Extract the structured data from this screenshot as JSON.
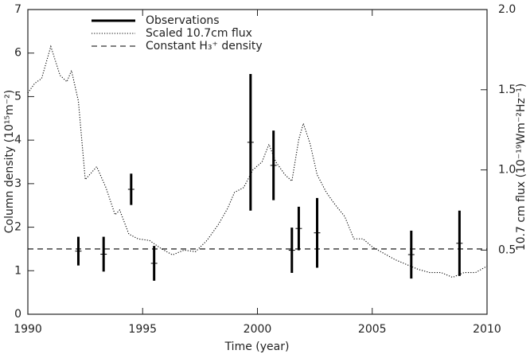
{
  "chart_data": {
    "type": "line",
    "xlabel": "Time (year)",
    "ylabel": "Column density (10¹⁵m⁻²)",
    "y2label": "10.7 cm flux (10⁻¹⁹Wm⁻²Hz⁻¹)",
    "xlim": [
      1990,
      2010
    ],
    "xticks": [
      1990,
      1995,
      2000,
      2005,
      2010
    ],
    "ylim": [
      0,
      7
    ],
    "yticks": [
      0,
      1,
      2,
      3,
      4,
      5,
      6,
      7
    ],
    "y2lim": [
      0.1,
      2.0
    ],
    "y2ticks": [
      {
        "value": 0.5,
        "label": "0.5"
      },
      {
        "value": 1.0,
        "label": "1.0"
      },
      {
        "value": 1.5,
        "label": "1.5"
      },
      {
        "value": 2.0,
        "label": "2.0"
      }
    ],
    "legend": "upper left",
    "series": [
      {
        "name": "Observations",
        "color": "#000000",
        "style": "errorbar",
        "x": [
          1992.2,
          1993.3,
          1994.5,
          1995.5,
          1999.7,
          2000.7,
          2001.5,
          2001.8,
          2002.6,
          2006.7,
          2008.8
        ],
        "values": [
          1.45,
          1.38,
          2.87,
          1.17,
          3.95,
          3.42,
          1.47,
          1.97,
          1.87,
          1.37,
          1.63
        ],
        "errors": [
          0.33,
          0.4,
          0.36,
          0.4,
          1.57,
          0.8,
          0.52,
          0.5,
          0.8,
          0.55,
          0.75
        ]
      },
      {
        "name": "Scaled 10.7cm flux",
        "color": "#000000",
        "style": "dotted",
        "axis": "y2",
        "x": [
          1990.0,
          1990.3,
          1990.6,
          1991.0,
          1991.4,
          1991.7,
          1991.9,
          1992.2,
          1992.5,
          1993.0,
          1993.4,
          1993.8,
          1994.0,
          1994.4,
          1994.8,
          1995.3,
          1995.8,
          1996.3,
          1996.8,
          1997.3,
          1997.8,
          1998.3,
          1998.7,
          1999.0,
          1999.4,
          1999.8,
          2000.2,
          2000.5,
          2000.8,
          2001.2,
          2001.5,
          2001.8,
          2002.0,
          2002.3,
          2002.6,
          2003.0,
          2003.4,
          2003.8,
          2004.2,
          2004.6,
          2005.0,
          2005.5,
          2006.0,
          2006.5,
          2007.0,
          2007.5,
          2008.0,
          2008.5,
          2009.0,
          2009.5,
          2010.0
        ],
        "values": [
          1.48,
          1.54,
          1.57,
          1.77,
          1.59,
          1.55,
          1.62,
          1.43,
          0.94,
          1.02,
          0.89,
          0.72,
          0.75,
          0.6,
          0.57,
          0.56,
          0.51,
          0.47,
          0.5,
          0.49,
          0.56,
          0.66,
          0.76,
          0.86,
          0.89,
          1.0,
          1.05,
          1.16,
          1.05,
          0.97,
          0.93,
          1.19,
          1.29,
          1.16,
          0.97,
          0.86,
          0.78,
          0.71,
          0.57,
          0.57,
          0.52,
          0.48,
          0.44,
          0.41,
          0.38,
          0.36,
          0.36,
          0.33,
          0.36,
          0.36,
          0.4
        ]
      },
      {
        "name": "Constant H₃⁺ density",
        "color": "#000000",
        "style": "dashed",
        "x": [
          1990,
          2010
        ],
        "values": [
          1.5,
          1.5
        ]
      }
    ]
  }
}
